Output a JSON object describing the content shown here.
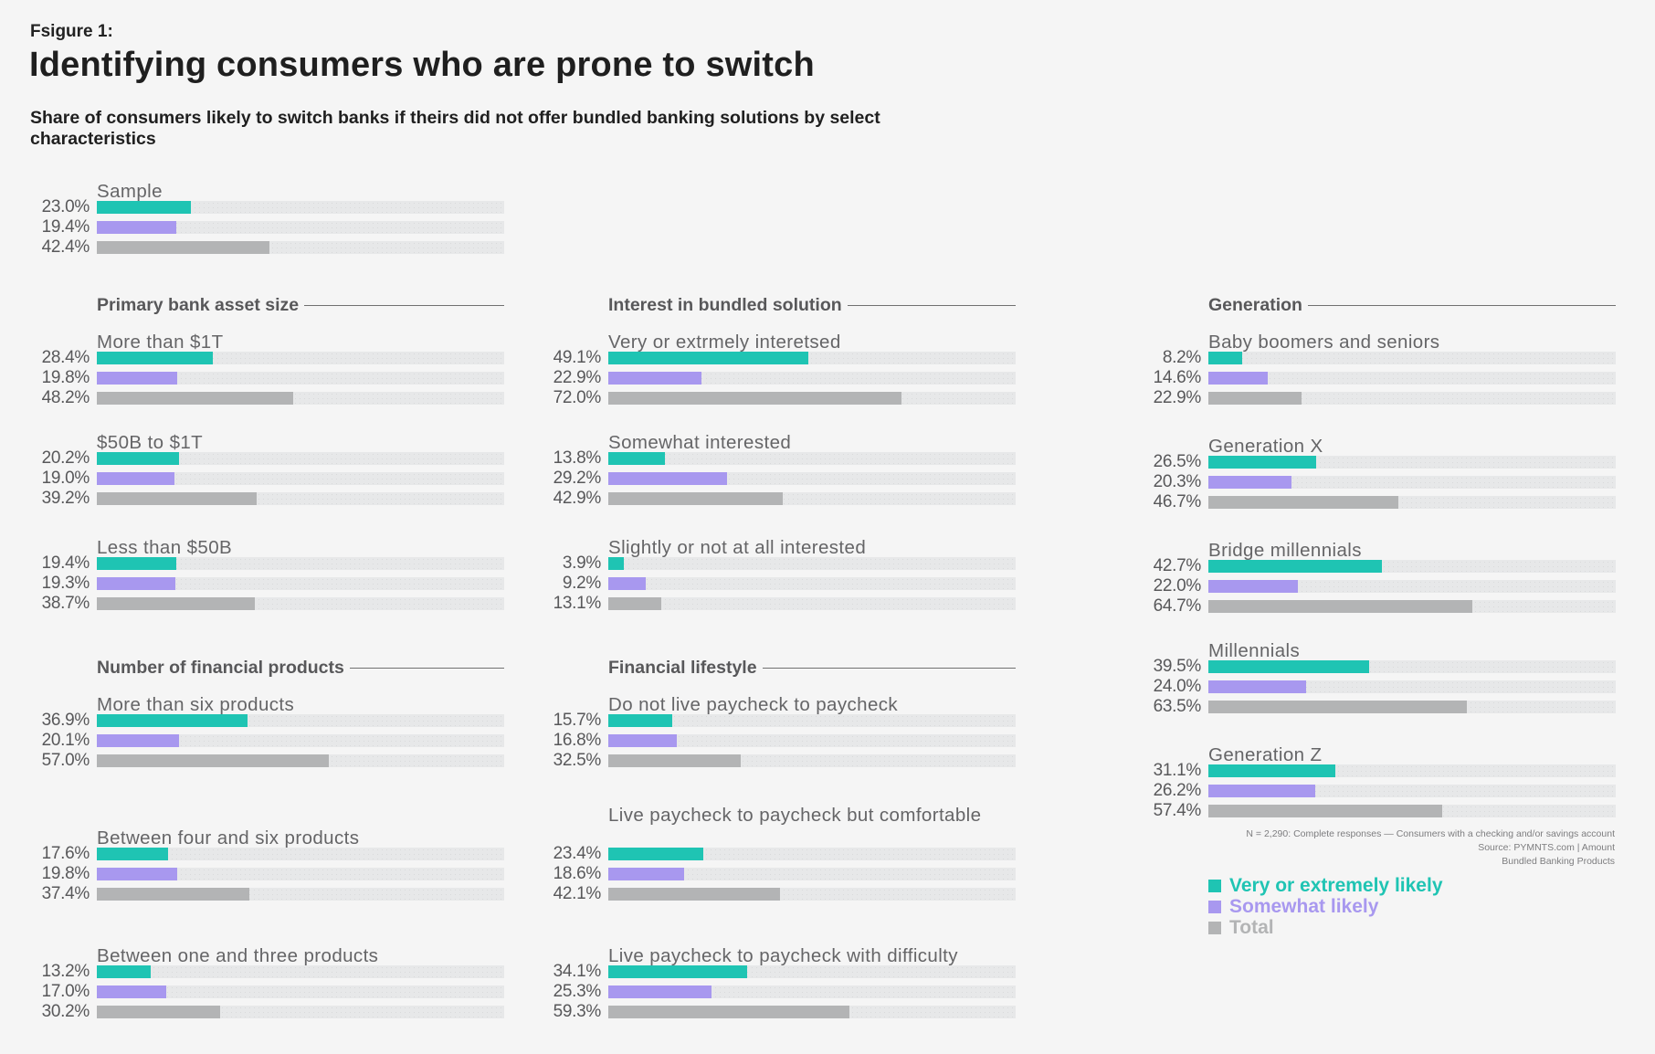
{
  "figure_label": "Fsigure 1:",
  "title": "Identifying consumers who are prone to switch",
  "subtitle": "Share of consumers likely to switch banks if theirs did not offer bundled banking solutions by select characteristics",
  "colors": {
    "very_or_extremely_likely": "#1fc4b3",
    "somewhat_likely": "#a898ef",
    "total": "#b3b4b5",
    "track": "#e7e8e9",
    "background": "#f5f5f5"
  },
  "footnote": {
    "lines": [
      "N = 2,290: Complete responses — Consumers with a checking and/or savings account",
      "Source: PYMNTS.com  |  Amount",
      "Bundled Banking Products"
    ]
  },
  "legend": [
    {
      "label": "Very or extremely likely",
      "color": "#1fc4b3"
    },
    {
      "label": "Somewhat likely",
      "color": "#a898ef"
    },
    {
      "label": "Total",
      "color": "#b3b4b5"
    }
  ],
  "chart_data": {
    "type": "bar",
    "orientation": "horizontal",
    "title": "Identifying consumers who are prone to switch",
    "subtitle": "Share of consumers likely to switch banks if theirs did not offer bundled banking solutions by select characteristics",
    "xlim": [
      0,
      100
    ],
    "unit": "%",
    "grid": false,
    "legend_position": "bottom-right",
    "series_names": [
      "Very or extremely likely",
      "Somewhat likely",
      "Total"
    ],
    "sections": [
      {
        "name": "",
        "groups": [
          {
            "label": "Sample",
            "values": [
              23.0,
              19.4,
              42.4
            ],
            "labels": [
              "23.0%",
              "19.4%",
              "42.4%"
            ]
          }
        ]
      },
      {
        "name": "Primary bank asset size",
        "groups": [
          {
            "label": "More than $1T",
            "values": [
              28.4,
              19.8,
              48.2
            ],
            "labels": [
              "28.4%",
              "19.8%",
              "48.2%"
            ]
          },
          {
            "label": "$50B to $1T",
            "values": [
              20.2,
              19.0,
              39.2
            ],
            "labels": [
              "20.2%",
              "19.0%",
              "39.2%"
            ]
          },
          {
            "label": "Less than $50B",
            "values": [
              19.4,
              19.3,
              38.7
            ],
            "labels": [
              "19.4%",
              "19.3%",
              "38.7%"
            ]
          }
        ]
      },
      {
        "name": "Number of financial products",
        "groups": [
          {
            "label": "More than six products",
            "values": [
              36.9,
              20.1,
              57.0
            ],
            "labels": [
              "36.9%",
              "20.1%",
              "57.0%"
            ]
          },
          {
            "label": "Between four and six products",
            "values": [
              17.6,
              19.8,
              37.4
            ],
            "labels": [
              "17.6%",
              "19.8%",
              "37.4%"
            ]
          },
          {
            "label": "Between one and three products",
            "values": [
              13.2,
              17.0,
              30.2
            ],
            "labels": [
              "13.2%",
              "17.0%",
              "30.2%"
            ]
          }
        ]
      },
      {
        "name": "Interest in bundled solution",
        "groups": [
          {
            "label": "Very or extrmely interetsed",
            "values": [
              49.1,
              22.9,
              72.0
            ],
            "labels": [
              "49.1%",
              "22.9%",
              "72.0%"
            ]
          },
          {
            "label": "Somewhat interested",
            "values": [
              13.8,
              29.2,
              42.9
            ],
            "labels": [
              "13.8%",
              "29.2%",
              "42.9%"
            ]
          },
          {
            "label": "Slightly or not at all interested",
            "values": [
              3.9,
              9.2,
              13.1
            ],
            "labels": [
              "3.9%",
              "9.2%",
              "13.1%"
            ]
          }
        ]
      },
      {
        "name": "Financial lifestyle",
        "groups": [
          {
            "label": "Do not live paycheck to paycheck",
            "values": [
              15.7,
              16.8,
              32.5
            ],
            "labels": [
              "15.7%",
              "16.8%",
              "32.5%"
            ]
          },
          {
            "label": "Live paycheck to paycheck but comfortable",
            "values": [
              23.4,
              18.6,
              42.1
            ],
            "labels": [
              "23.4%",
              "18.6%",
              "42.1%"
            ]
          },
          {
            "label": "Live paycheck to paycheck with difficulty",
            "values": [
              34.1,
              25.3,
              59.3
            ],
            "labels": [
              "34.1%",
              "25.3%",
              "59.3%"
            ]
          }
        ]
      },
      {
        "name": "Generation",
        "groups": [
          {
            "label": "Baby boomers and seniors",
            "values": [
              8.2,
              14.6,
              22.9
            ],
            "labels": [
              "8.2%",
              "14.6%",
              "22.9%"
            ]
          },
          {
            "label": "Generation X",
            "values": [
              26.5,
              20.3,
              46.7
            ],
            "labels": [
              "26.5%",
              "20.3%",
              "46.7%"
            ]
          },
          {
            "label": "Bridge millennials",
            "values": [
              42.7,
              22.0,
              64.7
            ],
            "labels": [
              "42.7%",
              "22.0%",
              "64.7%"
            ]
          },
          {
            "label": "Millennials",
            "values": [
              39.5,
              24.0,
              63.5
            ],
            "labels": [
              "39.5%",
              "24.0%",
              "63.5%"
            ]
          },
          {
            "label": "Generation Z",
            "values": [
              31.1,
              26.2,
              57.4
            ],
            "labels": [
              "31.1%",
              "26.2%",
              "57.4%"
            ]
          }
        ]
      }
    ]
  }
}
